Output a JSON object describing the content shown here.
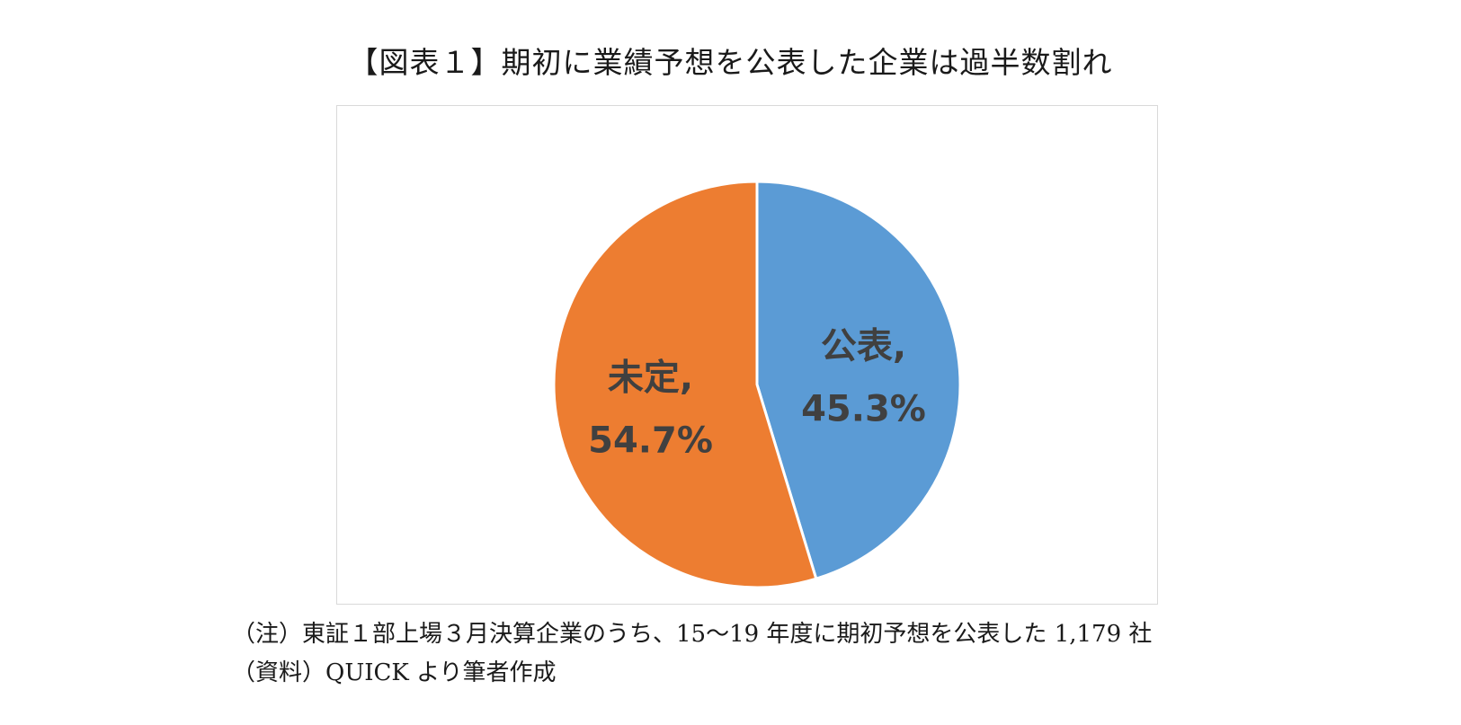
{
  "chart_data": {
    "type": "pie",
    "title": "【図表１】期初に業績予想を公表した企業は過半数割れ",
    "slices": [
      {
        "name": "公表",
        "value": 45.3,
        "label": "公表,",
        "value_label": "45.3%",
        "color": "#5b9bd5"
      },
      {
        "name": "未定",
        "value": 54.7,
        "label": "未定,",
        "value_label": "54.7%",
        "color": "#ed7d31"
      }
    ],
    "start": "12 o'clock",
    "direction": "clockwise",
    "legend": "none"
  },
  "notes": {
    "note": "（注）東証１部上場３月決算企業のうち、15～19 年度に期初予想を公表した 1,179 社",
    "source": "（資料）QUICK より筆者作成"
  }
}
